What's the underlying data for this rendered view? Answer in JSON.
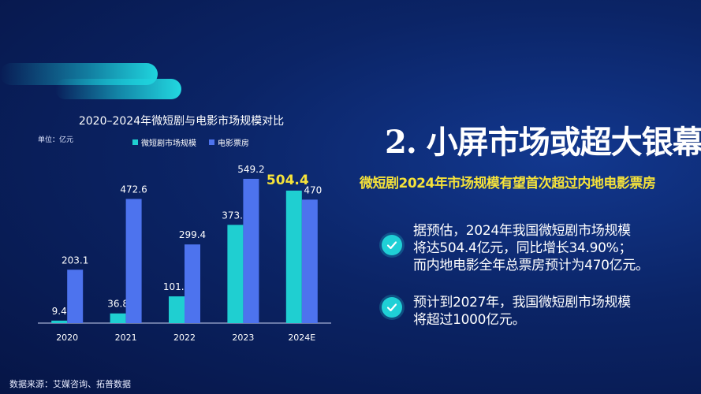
{
  "chart_data": {
    "type": "bar",
    "title": "2020–2024年微短剧与电影市场规模对比",
    "unit": "单位：亿元",
    "categories": [
      "2020",
      "2021",
      "2022",
      "2023",
      "2024E"
    ],
    "series": [
      {
        "name": "微短剧市场规模",
        "color": "#1fcfd1",
        "values": [
          9.4,
          36.8,
          101.7,
          373.9,
          504.4
        ],
        "labels": [
          "9.4",
          "36.8",
          "101.7",
          "373.9",
          "504.4"
        ]
      },
      {
        "name": "电影票房",
        "color": "#4d73ee",
        "values": [
          203.1,
          472.6,
          299.4,
          549.2,
          470
        ],
        "labels": [
          "203.1",
          "472.6",
          "299.4",
          "549.2",
          "470"
        ]
      }
    ],
    "highlight_color": "#f5e23a",
    "ylim": [
      0,
      600
    ],
    "grid": false,
    "legend_position": "top"
  },
  "source": "数据来源：艾媒咨询、拓普数据",
  "heading": "2. 小屏市场或超大银幕",
  "subheading": "微短剧2024年市场规模有望首次超过内地电影票房",
  "points": [
    {
      "lines": [
        "据预估，2024年我国微短剧市场规模",
        "将达504.4亿元，同比增长34.90%；",
        "而内地电影全年总票房预计为470亿元。"
      ]
    },
    {
      "lines": [
        "预计到2027年，我国微短剧市场规模",
        "将超过1000亿元。"
      ]
    }
  ]
}
